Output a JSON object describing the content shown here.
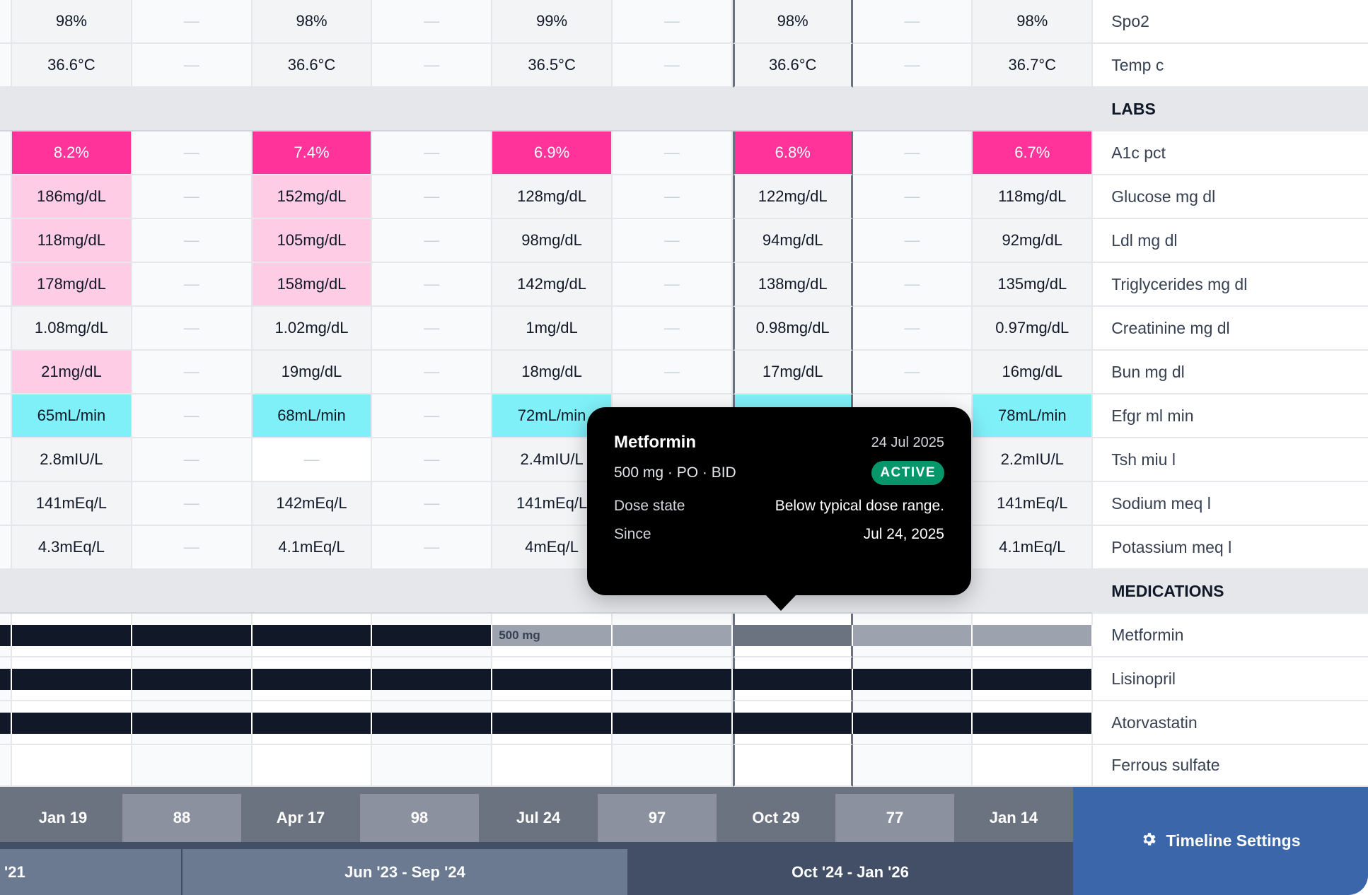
{
  "empty_marker": "—",
  "colors": {
    "critical": "#ff3399",
    "abnormal": "#ffcce6",
    "low": "#80f0f8",
    "missing": "#ffffff",
    "med_active": "#111827",
    "med_reduced": "#9ca3af",
    "med_reduced_selected": "#6b7280",
    "accent": "#3b66aa"
  },
  "selected_column": 6,
  "rows": [
    {
      "type": "row",
      "label": "Spo2",
      "values": [
        "98%",
        "98%",
        "99%",
        "98%",
        "98%"
      ]
    },
    {
      "type": "row",
      "label": "Temp c",
      "values": [
        "36.6°C",
        "36.6°C",
        "36.5°C",
        "36.6°C",
        "36.7°C"
      ]
    },
    {
      "type": "section",
      "label": "LABS"
    },
    {
      "type": "row",
      "label": "A1c pct",
      "values": [
        "8.2%",
        "7.4%",
        "6.9%",
        "6.8%",
        "6.7%"
      ],
      "flags": [
        "critical",
        "critical",
        "critical",
        "critical",
        "critical"
      ]
    },
    {
      "type": "row",
      "label": "Glucose mg dl",
      "values": [
        "186mg/dL",
        "152mg/dL",
        "128mg/dL",
        "122mg/dL",
        "118mg/dL"
      ],
      "flags": [
        "abnormal",
        "abnormal",
        "",
        "",
        ""
      ]
    },
    {
      "type": "row",
      "label": "Ldl mg dl",
      "values": [
        "118mg/dL",
        "105mg/dL",
        "98mg/dL",
        "94mg/dL",
        "92mg/dL"
      ],
      "flags": [
        "abnormal",
        "abnormal",
        "",
        "",
        ""
      ]
    },
    {
      "type": "row",
      "label": "Triglycerides mg dl",
      "values": [
        "178mg/dL",
        "158mg/dL",
        "142mg/dL",
        "138mg/dL",
        "135mg/dL"
      ],
      "flags": [
        "abnormal",
        "abnormal",
        "",
        "",
        ""
      ]
    },
    {
      "type": "row",
      "label": "Creatinine mg dl",
      "values": [
        "1.08mg/dL",
        "1.02mg/dL",
        "1mg/dL",
        "0.98mg/dL",
        "0.97mg/dL"
      ]
    },
    {
      "type": "row",
      "label": "Bun mg dl",
      "values": [
        "21mg/dL",
        "19mg/dL",
        "18mg/dL",
        "17mg/dL",
        "16mg/dL"
      ],
      "flags": [
        "abnormal",
        "",
        "",
        "",
        ""
      ]
    },
    {
      "type": "row",
      "label": "Efgr ml min",
      "values": [
        "65mL/min",
        "68mL/min",
        "72mL/min",
        "",
        "78mL/min"
      ],
      "flags": [
        "low",
        "low",
        "low",
        "low",
        "low"
      ]
    },
    {
      "type": "row",
      "label": "Tsh miu l",
      "values": [
        "2.8mIU/L",
        "—",
        "2.4mIU/L",
        "",
        "2.2mIU/L"
      ],
      "flags": [
        "",
        "missing",
        "",
        "",
        ""
      ]
    },
    {
      "type": "row",
      "label": "Sodium meq l",
      "values": [
        "141mEq/L",
        "142mEq/L",
        "141mEq/L",
        "",
        "141mEq/L"
      ]
    },
    {
      "type": "row",
      "label": "Potassium meq l",
      "values": [
        "4.3mEq/L",
        "4.1mEq/L",
        "4mEq/L",
        "",
        "4.1mEq/L"
      ]
    },
    {
      "type": "section",
      "label": "MEDICATIONS"
    },
    {
      "type": "med",
      "label": "Metformin",
      "bar": [
        "active",
        "active",
        "active",
        "active",
        "active",
        "reduced",
        "reduced",
        "reduced_selected",
        "reduced",
        "reduced"
      ],
      "bar_label": "500 mg"
    },
    {
      "type": "med",
      "label": "Lisinopril",
      "bar": [
        "active",
        "active",
        "active",
        "active",
        "active",
        "active",
        "active",
        "active",
        "active",
        "active"
      ]
    },
    {
      "type": "med",
      "label": "Atorvastatin",
      "bar": [
        "active",
        "active",
        "active",
        "active",
        "active",
        "active",
        "active",
        "active",
        "active",
        "active"
      ]
    },
    {
      "type": "med",
      "label": "Ferrous sulfate",
      "bar": [
        "",
        "",
        "",
        "",
        "",
        "",
        "",
        "",
        "",
        ""
      ]
    }
  ],
  "timeline": {
    "ticks": [
      "Jan 19",
      "88",
      "Apr 17",
      "98",
      "Jul 24",
      "97",
      "Oct 29",
      "77",
      "Jan 14"
    ],
    "ranges": [
      "'21",
      "Jun '23 - Sep '24",
      "Oct '24 - Jan '26"
    ],
    "settings_label": "Timeline Settings",
    "settings_icon": "gear-icon"
  },
  "tooltip": {
    "title": "Metformin",
    "date": "24 Jul 2025",
    "dose": "500 mg · PO · BID",
    "status": "ACTIVE",
    "details": [
      {
        "key": "Dose state",
        "value": "Below typical dose range."
      },
      {
        "key": "Since",
        "value": "Jul 24, 2025"
      }
    ]
  }
}
